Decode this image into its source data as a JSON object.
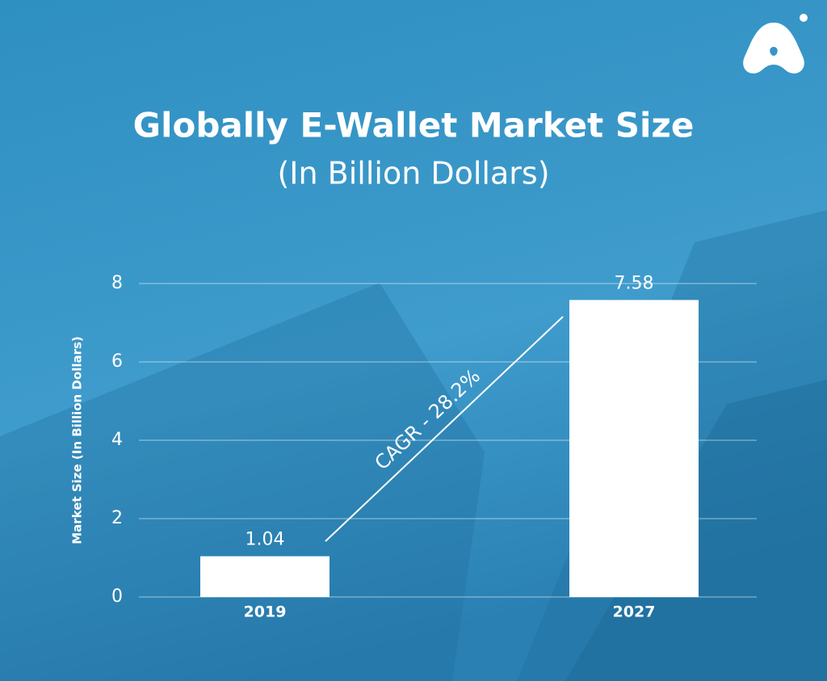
{
  "chart_data": {
    "type": "bar",
    "title": "Globally E-Wallet Market Size",
    "subtitle": "(In Billion Dollars)",
    "y_label": "Market Size (In Billion Dollars)",
    "annotation": "CAGR - 28.2%",
    "categories": [
      "2019",
      "2027"
    ],
    "values": [
      1.04,
      7.58
    ],
    "color": "#ffffff",
    "ylim": [
      0,
      8
    ],
    "yticks": [
      0,
      2,
      4,
      6,
      8
    ],
    "grid": true
  }
}
